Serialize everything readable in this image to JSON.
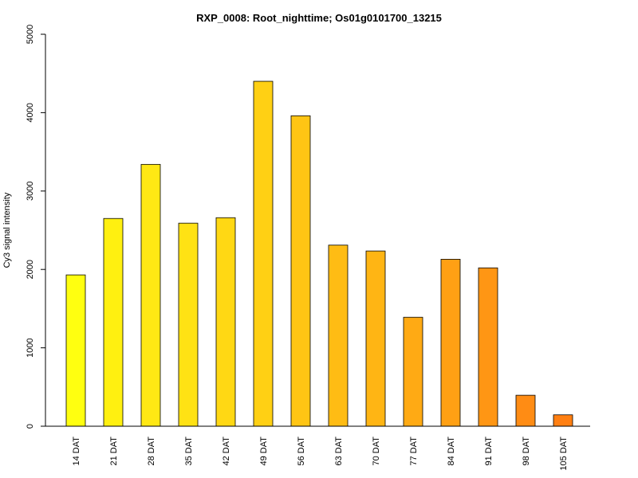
{
  "chart_data": {
    "type": "bar",
    "title": "RXP_0008: Root_nighttime; Os01g0101700_13215",
    "xlabel": "",
    "ylabel": "Cy3 signal intensity",
    "ylim": [
      0,
      5000
    ],
    "yticks": [
      0,
      1000,
      2000,
      3000,
      4000,
      5000
    ],
    "categories": [
      "14 DAT",
      "21 DAT",
      "28 DAT",
      "35 DAT",
      "42 DAT",
      "49 DAT",
      "56 DAT",
      "63 DAT",
      "70 DAT",
      "77 DAT",
      "84 DAT",
      "91 DAT",
      "98 DAT",
      "105 DAT"
    ],
    "values": [
      1930,
      2650,
      3340,
      2590,
      2660,
      4400,
      3960,
      2310,
      2235,
      1390,
      2130,
      2020,
      395,
      145
    ],
    "colors": [
      "#FFFF10",
      "#FFF010",
      "#FFE814",
      "#FFE214",
      "#FFD814",
      "#FFD014",
      "#FFC514",
      "#FFBC14",
      "#FFB514",
      "#FFAA14",
      "#FFA014",
      "#FF9614",
      "#FF8C14",
      "#FF7F12"
    ],
    "grid": false,
    "legend": "none"
  }
}
